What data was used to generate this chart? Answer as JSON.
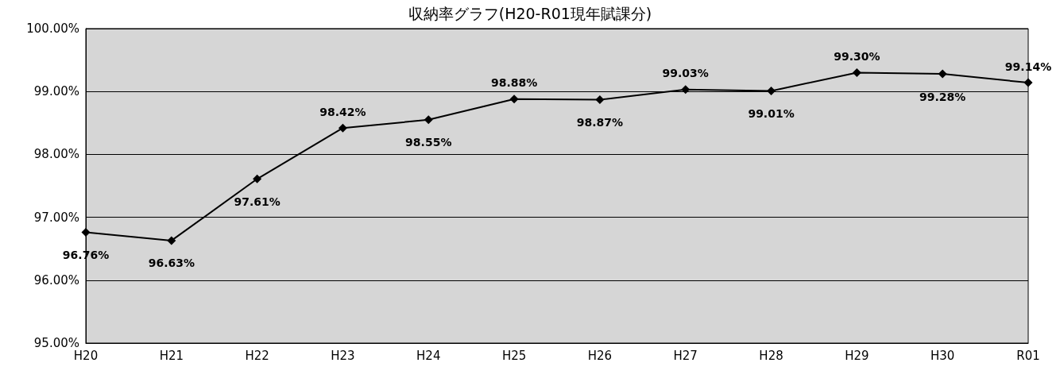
{
  "chart_data": {
    "type": "line",
    "title": "収納率グラフ(H20-R01現年賦課分)",
    "categories": [
      "H20",
      "H21",
      "H22",
      "H23",
      "H24",
      "H25",
      "H26",
      "H27",
      "H28",
      "H29",
      "H30",
      "R01"
    ],
    "series": [
      {
        "color": "#000000",
        "values": [
          96.76,
          96.63,
          97.61,
          98.42,
          98.55,
          98.88,
          98.87,
          99.03,
          99.01,
          99.3,
          99.28,
          99.14
        ],
        "value_labels": [
          "96.76%",
          "96.63%",
          "97.61%",
          "98.42%",
          "98.55%",
          "98.88%",
          "98.87%",
          "99.03%",
          "99.01%",
          "99.30%",
          "99.28%",
          "99.14%"
        ]
      }
    ],
    "ylim": [
      95,
      100
    ],
    "yticks": [
      {
        "value": 95,
        "label": "95.00%"
      },
      {
        "value": 96,
        "label": "96.00%"
      },
      {
        "value": 97,
        "label": "97.00%"
      },
      {
        "value": 98,
        "label": "98.00%"
      },
      {
        "value": 99,
        "label": "99.00%"
      },
      {
        "value": 100,
        "label": "100.00%"
      }
    ],
    "grid": "y",
    "marker": "diamond",
    "line_style": "solid"
  }
}
